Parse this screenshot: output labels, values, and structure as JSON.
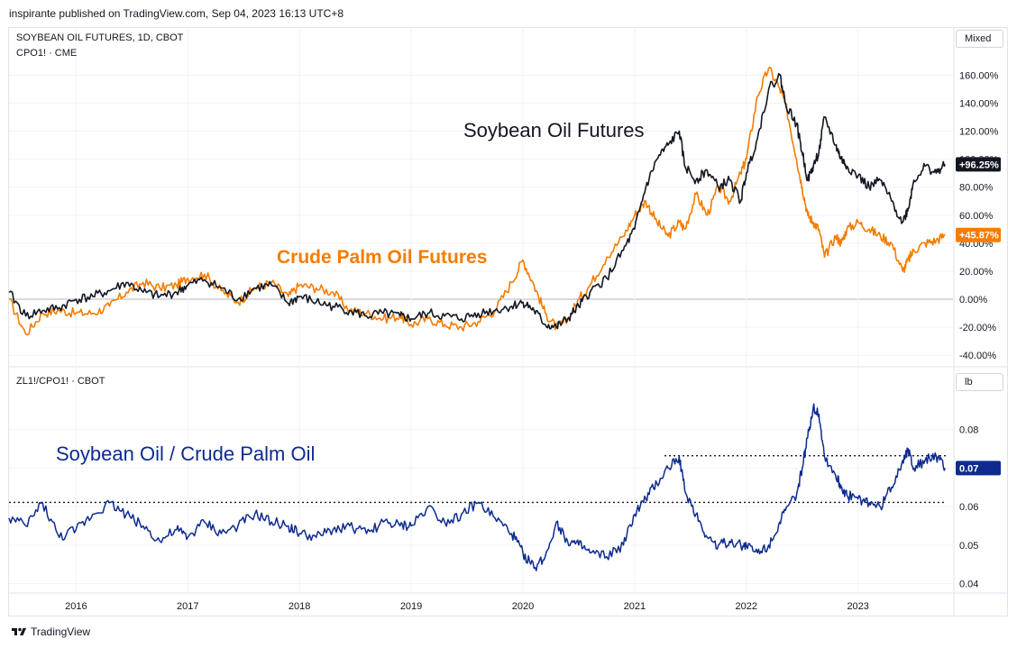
{
  "header": {
    "publish_line": "inspirante published on TradingView.com, Sep 04, 2023 16:13 UTC+8"
  },
  "top_pane": {
    "symbol_line1": "SOYBEAN OIL FUTURES, 1D, CBOT",
    "symbol_line2": "CPO1! · CME",
    "scale_button": "Mixed"
  },
  "bottom_pane": {
    "symbol_line": "ZL1!/CPO1! · CBOT",
    "unit_button": "lb"
  },
  "footer": {
    "brand": "TradingView"
  },
  "colors": {
    "soybean": "#131722",
    "palm": "#f57c00",
    "ratio": "#0d2b8f",
    "grid": "#f0f3fa",
    "zero_line": "#b2b5be"
  },
  "chart_data": [
    {
      "type": "line",
      "pane": "top",
      "y_unit": "percent",
      "ylim": [
        -45,
        175
      ],
      "xlim": [
        2015.4,
        2023.85
      ],
      "yticks": [
        "160.00%",
        "140.00%",
        "120.00%",
        "100.00%",
        "80.00%",
        "60.00%",
        "40.00%",
        "20.00%",
        "0.00%",
        "-20.00%",
        "-40.00%"
      ],
      "ytick_values": [
        160,
        140,
        120,
        100,
        80,
        60,
        40,
        20,
        0,
        -20,
        -40
      ],
      "xticks": [
        "2016",
        "2017",
        "2018",
        "2019",
        "2020",
        "2021",
        "2022",
        "2023"
      ],
      "xtick_values": [
        2016,
        2017,
        2018,
        2019,
        2020,
        2021,
        2022,
        2023
      ],
      "annotations": [
        "Soybean Oil Futures",
        "Crude Palm Oil Futures"
      ],
      "series": [
        {
          "name": "Soybean Oil Futures",
          "last_label": "+96.25%",
          "x": [
            2015.4,
            2015.55,
            2015.7,
            2015.85,
            2016.0,
            2016.15,
            2016.3,
            2016.45,
            2016.6,
            2016.75,
            2016.9,
            2017.0,
            2017.15,
            2017.3,
            2017.45,
            2017.6,
            2017.75,
            2017.9,
            2018.0,
            2018.15,
            2018.3,
            2018.45,
            2018.6,
            2018.75,
            2018.9,
            2019.0,
            2019.15,
            2019.3,
            2019.45,
            2019.6,
            2019.75,
            2019.9,
            2020.0,
            2020.1,
            2020.2,
            2020.3,
            2020.4,
            2020.5,
            2020.6,
            2020.75,
            2020.9,
            2021.0,
            2021.1,
            2021.2,
            2021.3,
            2021.4,
            2021.45,
            2021.55,
            2021.65,
            2021.75,
            2021.85,
            2021.95,
            2022.0,
            2022.1,
            2022.2,
            2022.3,
            2022.35,
            2022.45,
            2022.5,
            2022.55,
            2022.6,
            2022.65,
            2022.7,
            2022.8,
            2022.85,
            2022.9,
            2023.0,
            2023.1,
            2023.2,
            2023.3,
            2023.4,
            2023.45,
            2023.5,
            2023.6,
            2023.7,
            2023.78
          ],
          "y": [
            5,
            -12,
            -8,
            -6,
            0,
            2,
            6,
            12,
            5,
            2,
            5,
            10,
            14,
            8,
            0,
            8,
            10,
            -3,
            2,
            -2,
            -5,
            -8,
            -12,
            -10,
            -12,
            -14,
            -10,
            -12,
            -14,
            -10,
            -8,
            -5,
            -2,
            -8,
            -18,
            -20,
            -14,
            -5,
            5,
            15,
            35,
            50,
            80,
            100,
            110,
            120,
            95,
            85,
            92,
            80,
            85,
            70,
            90,
            115,
            150,
            160,
            140,
            125,
            105,
            85,
            95,
            105,
            130,
            110,
            100,
            95,
            88,
            80,
            85,
            70,
            55,
            65,
            85,
            95,
            90,
            96.25
          ]
        },
        {
          "name": "Crude Palm Oil Futures",
          "last_label": "+45.87%",
          "x": [
            2015.4,
            2015.55,
            2015.7,
            2015.85,
            2016.0,
            2016.15,
            2016.3,
            2016.45,
            2016.6,
            2016.75,
            2016.9,
            2017.0,
            2017.15,
            2017.3,
            2017.45,
            2017.6,
            2017.75,
            2017.9,
            2018.0,
            2018.15,
            2018.3,
            2018.45,
            2018.6,
            2018.75,
            2018.9,
            2019.0,
            2019.15,
            2019.3,
            2019.45,
            2019.6,
            2019.75,
            2019.9,
            2020.0,
            2020.1,
            2020.2,
            2020.3,
            2020.4,
            2020.5,
            2020.6,
            2020.75,
            2020.9,
            2021.0,
            2021.1,
            2021.2,
            2021.3,
            2021.4,
            2021.45,
            2021.55,
            2021.65,
            2021.75,
            2021.85,
            2021.95,
            2022.0,
            2022.1,
            2022.2,
            2022.3,
            2022.35,
            2022.45,
            2022.5,
            2022.55,
            2022.6,
            2022.65,
            2022.7,
            2022.8,
            2022.85,
            2022.9,
            2023.0,
            2023.1,
            2023.2,
            2023.3,
            2023.4,
            2023.45,
            2023.5,
            2023.6,
            2023.7,
            2023.78
          ],
          "y": [
            0,
            -25,
            -10,
            -8,
            -10,
            -10,
            -5,
            5,
            12,
            8,
            10,
            15,
            18,
            6,
            -2,
            8,
            12,
            2,
            10,
            8,
            5,
            -8,
            -10,
            -14,
            -12,
            -18,
            -14,
            -18,
            -20,
            -16,
            -8,
            12,
            28,
            10,
            -10,
            -20,
            -15,
            0,
            10,
            30,
            45,
            60,
            70,
            55,
            45,
            55,
            50,
            75,
            60,
            80,
            70,
            90,
            100,
            145,
            165,
            150,
            140,
            100,
            80,
            60,
            55,
            50,
            30,
            45,
            40,
            50,
            55,
            50,
            45,
            40,
            20,
            28,
            35,
            40,
            42,
            45.87
          ]
        }
      ]
    },
    {
      "type": "line",
      "pane": "bottom",
      "ylim": [
        0.0385,
        0.0895
      ],
      "xlim": [
        2015.4,
        2023.85
      ],
      "yticks": [
        "0.08",
        "0.07",
        "0.06",
        "0.05",
        "0.04"
      ],
      "ytick_values": [
        0.08,
        0.07,
        0.06,
        0.05,
        0.04
      ],
      "xticks": [
        "2016",
        "2017",
        "2018",
        "2019",
        "2020",
        "2021",
        "2022",
        "2023"
      ],
      "xtick_values": [
        2016,
        2017,
        2018,
        2019,
        2020,
        2021,
        2022,
        2023
      ],
      "annotations": [
        "Soybean Oil / Crude Palm Oil"
      ],
      "hlines": [
        0.0732,
        0.0611
      ],
      "series": [
        {
          "name": "ZL1!/CPO1!",
          "last_label": "0.07",
          "x": [
            2015.4,
            2015.55,
            2015.7,
            2015.85,
            2016.0,
            2016.15,
            2016.3,
            2016.45,
            2016.6,
            2016.75,
            2016.9,
            2017.0,
            2017.15,
            2017.3,
            2017.45,
            2017.6,
            2017.75,
            2017.9,
            2018.0,
            2018.15,
            2018.3,
            2018.45,
            2018.6,
            2018.75,
            2018.9,
            2019.0,
            2019.15,
            2019.3,
            2019.45,
            2019.6,
            2019.75,
            2019.9,
            2020.0,
            2020.1,
            2020.2,
            2020.3,
            2020.4,
            2020.5,
            2020.6,
            2020.75,
            2020.9,
            2021.0,
            2021.1,
            2021.2,
            2021.3,
            2021.4,
            2021.45,
            2021.55,
            2021.65,
            2021.75,
            2021.85,
            2021.95,
            2022.0,
            2022.1,
            2022.2,
            2022.3,
            2022.35,
            2022.45,
            2022.5,
            2022.55,
            2022.6,
            2022.65,
            2022.7,
            2022.8,
            2022.85,
            2022.9,
            2023.0,
            2023.1,
            2023.2,
            2023.3,
            2023.4,
            2023.45,
            2023.5,
            2023.6,
            2023.7,
            2023.78
          ],
          "y": [
            0.057,
            0.055,
            0.061,
            0.052,
            0.054,
            0.058,
            0.061,
            0.058,
            0.055,
            0.051,
            0.054,
            0.052,
            0.056,
            0.053,
            0.055,
            0.058,
            0.056,
            0.055,
            0.053,
            0.052,
            0.054,
            0.055,
            0.053,
            0.056,
            0.055,
            0.055,
            0.06,
            0.056,
            0.058,
            0.061,
            0.057,
            0.053,
            0.048,
            0.044,
            0.047,
            0.056,
            0.051,
            0.05,
            0.048,
            0.047,
            0.05,
            0.058,
            0.062,
            0.066,
            0.07,
            0.073,
            0.064,
            0.058,
            0.052,
            0.05,
            0.051,
            0.05,
            0.05,
            0.048,
            0.05,
            0.056,
            0.059,
            0.063,
            0.07,
            0.078,
            0.086,
            0.084,
            0.073,
            0.068,
            0.065,
            0.063,
            0.062,
            0.061,
            0.06,
            0.065,
            0.072,
            0.075,
            0.07,
            0.072,
            0.073,
            0.07
          ]
        }
      ]
    }
  ]
}
